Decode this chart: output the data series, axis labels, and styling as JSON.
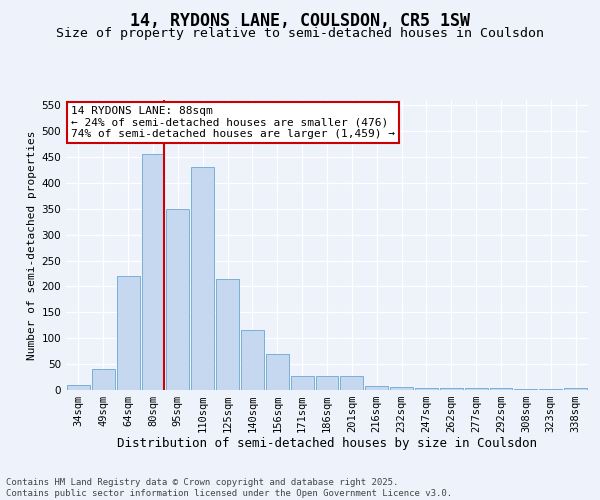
{
  "title": "14, RYDONS LANE, COULSDON, CR5 1SW",
  "subtitle": "Size of property relative to semi-detached houses in Coulsdon",
  "xlabel": "Distribution of semi-detached houses by size in Coulsdon",
  "ylabel": "Number of semi-detached properties",
  "categories": [
    "34sqm",
    "49sqm",
    "64sqm",
    "80sqm",
    "95sqm",
    "110sqm",
    "125sqm",
    "140sqm",
    "156sqm",
    "171sqm",
    "186sqm",
    "201sqm",
    "216sqm",
    "232sqm",
    "247sqm",
    "262sqm",
    "277sqm",
    "292sqm",
    "308sqm",
    "323sqm",
    "338sqm"
  ],
  "values": [
    10,
    40,
    220,
    455,
    350,
    430,
    215,
    115,
    70,
    28,
    28,
    28,
    8,
    5,
    3,
    3,
    3,
    3,
    2,
    2,
    3
  ],
  "bar_color": "#c5d8f0",
  "bar_edge_color": "#7bafd4",
  "vline_color": "#cc0000",
  "vline_x_index": 3,
  "annotation_text": "14 RYDONS LANE: 88sqm\n← 24% of semi-detached houses are smaller (476)\n74% of semi-detached houses are larger (1,459) →",
  "annotation_box_color": "#ffffff",
  "annotation_box_edge_color": "#cc0000",
  "ylim": [
    0,
    560
  ],
  "yticks": [
    0,
    50,
    100,
    150,
    200,
    250,
    300,
    350,
    400,
    450,
    500,
    550
  ],
  "background_color": "#eef2fb",
  "plot_background_color": "#eef2fb",
  "footer_text": "Contains HM Land Registry data © Crown copyright and database right 2025.\nContains public sector information licensed under the Open Government Licence v3.0.",
  "title_fontsize": 12,
  "subtitle_fontsize": 9.5,
  "xlabel_fontsize": 9,
  "ylabel_fontsize": 8,
  "tick_fontsize": 7.5,
  "annotation_fontsize": 8,
  "footer_fontsize": 6.5
}
